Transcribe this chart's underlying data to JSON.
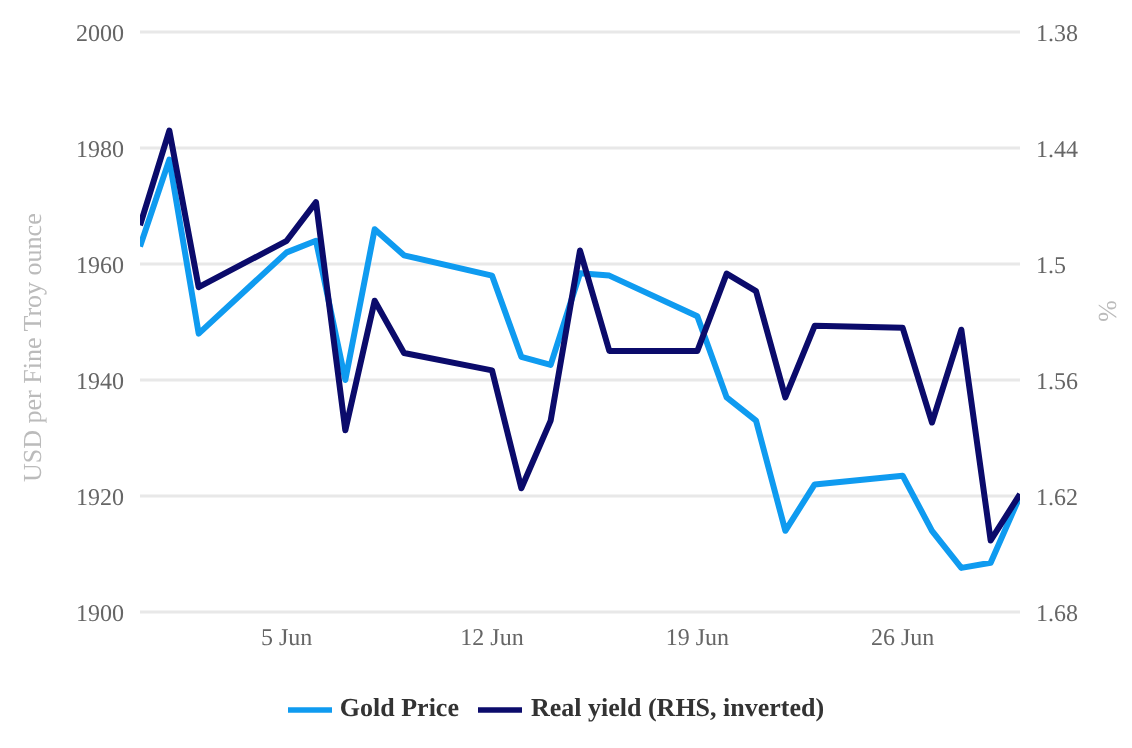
{
  "chart_data": {
    "type": "line",
    "x": [
      "--05-31",
      "--06-01",
      "--06-02",
      "--06-05",
      "--06-06",
      "--06-07",
      "--06-08",
      "--06-09",
      "--06-12",
      "--06-13",
      "--06-14",
      "--06-15",
      "--06-16",
      "--06-19",
      "--06-20",
      "--06-21",
      "--06-22",
      "--06-23",
      "--06-26",
      "--06-27",
      "--06-28",
      "--06-29",
      "--06-30"
    ],
    "series": [
      {
        "name": "Gold Price",
        "color": "#0f9bf0",
        "values": [
          1963,
          1978,
          1948,
          1962,
          1964,
          1940,
          1966,
          1961.5,
          1958,
          1944,
          1942.6,
          1958.4,
          1958,
          1951,
          1937,
          1933,
          1914,
          1922,
          1923.5,
          1914,
          1907.6,
          1908.5,
          1920
        ]
      },
      {
        "name": "Real yield (RHS, inverted)",
        "color": "#0b0b6b",
        "axis": "y2",
        "values": [
          1.48,
          1.431,
          1.512,
          1.488,
          1.468,
          1.586,
          1.519,
          1.546,
          1.555,
          1.616,
          1.581,
          1.493,
          1.545,
          1.545,
          1.505,
          1.514,
          1.569,
          1.532,
          1.533,
          1.582,
          1.534,
          1.643,
          1.619
        ]
      }
    ],
    "ylabel": "USD per Fine Troy ounce",
    "y2label": "%",
    "xlim": [
      "--05-31",
      "--06-30"
    ],
    "xticks": [
      {
        "value": "--06-05",
        "label": "5 Jun"
      },
      {
        "value": "--06-12",
        "label": "12 Jun"
      },
      {
        "value": "--06-19",
        "label": "19 Jun"
      },
      {
        "value": "--06-26",
        "label": "26 Jun"
      }
    ],
    "ylim": [
      1900,
      2000
    ],
    "yticks": [
      1900,
      1920,
      1940,
      1960,
      1980,
      2000
    ],
    "y2lim": [
      1.68,
      1.38
    ],
    "y2ticks": [
      {
        "value": 1.68,
        "label": "1.68"
      },
      {
        "value": 1.62,
        "label": "1.62"
      },
      {
        "value": 1.56,
        "label": "1.56"
      },
      {
        "value": 1.5,
        "label": "1.5"
      },
      {
        "value": 1.44,
        "label": "1.44"
      },
      {
        "value": 1.38,
        "label": "1.38"
      }
    ],
    "grid": "y",
    "legend": "bottom",
    "marker": "none",
    "line_style": "solid"
  }
}
